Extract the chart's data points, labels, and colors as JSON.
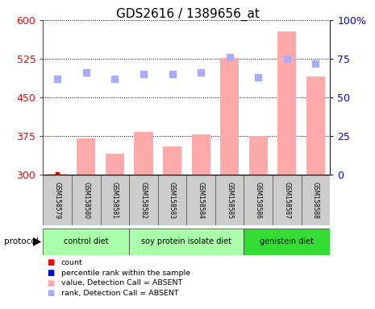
{
  "title": "GDS2616 / 1389656_at",
  "samples": [
    "GSM158579",
    "GSM158580",
    "GSM158581",
    "GSM158582",
    "GSM158583",
    "GSM158584",
    "GSM158585",
    "GSM158586",
    "GSM158587",
    "GSM158588"
  ],
  "pink_bar_values": [
    302,
    370,
    340,
    382,
    355,
    378,
    527,
    375,
    578,
    490
  ],
  "blue_square_ranks": [
    62,
    66,
    62,
    65,
    65,
    66,
    76,
    63,
    75,
    72
  ],
  "ymin": 300,
  "ymax": 600,
  "y2min": 0,
  "y2max": 100,
  "yticks": [
    300,
    375,
    450,
    525,
    600
  ],
  "y2ticks": [
    0,
    25,
    50,
    75,
    100
  ],
  "pink_bar_color": "#ffaaaa",
  "blue_square_color": "#aaaaff",
  "group_info": [
    {
      "label": "control diet",
      "start": 0,
      "end": 2,
      "color": "#aaffaa"
    },
    {
      "label": "soy protein isolate diet",
      "start": 3,
      "end": 6,
      "color": "#aaffaa"
    },
    {
      "label": "genistein diet",
      "start": 7,
      "end": 9,
      "color": "#33dd33"
    }
  ],
  "xlabel_color": "#ff0000",
  "y2label_color": "#0000ff",
  "title_fontsize": 11,
  "tick_fontsize": 9,
  "protocol_label": "protocol",
  "legend_items": [
    {
      "label": "count",
      "color": "#ff0000"
    },
    {
      "label": "percentile rank within the sample",
      "color": "#0000cc"
    },
    {
      "label": "value, Detection Call = ABSENT",
      "color": "#ffaaaa"
    },
    {
      "label": "rank, Detection Call = ABSENT",
      "color": "#aaaaff"
    }
  ]
}
